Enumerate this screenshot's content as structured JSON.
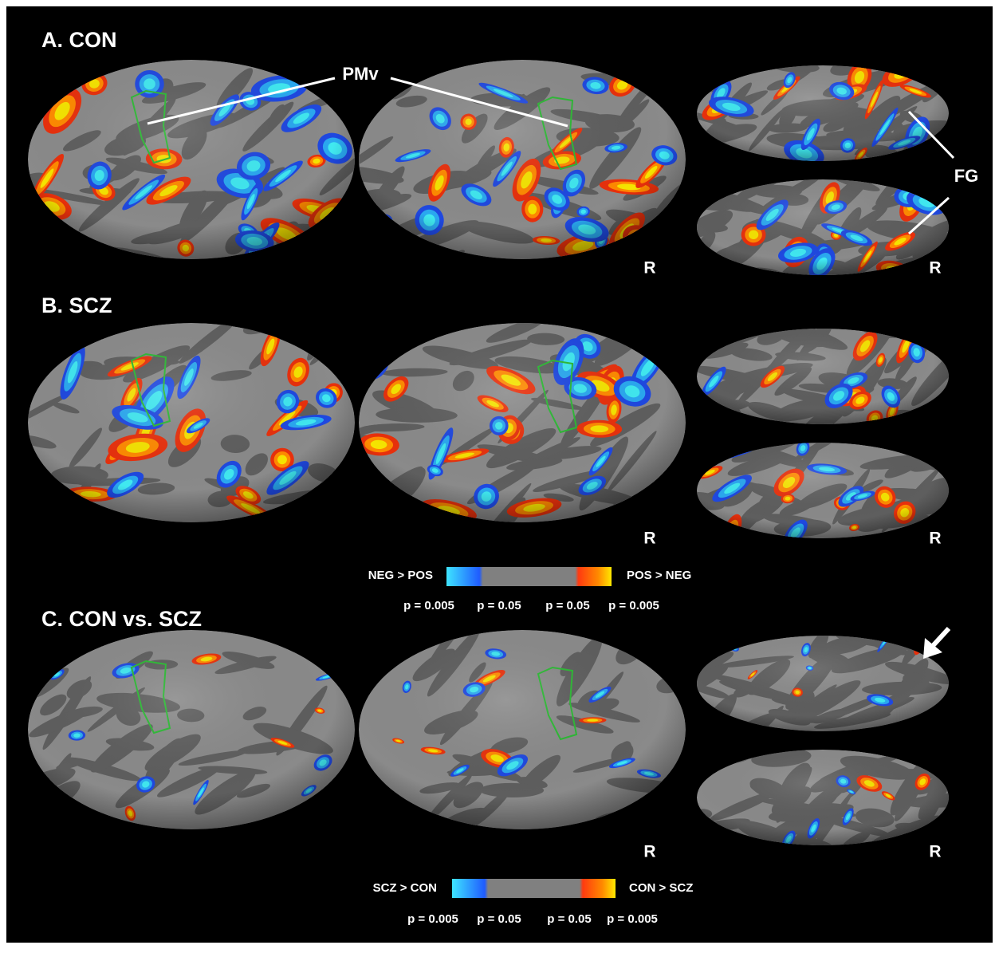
{
  "panels": [
    {
      "label": "A. CON",
      "annotations": [
        "PMv",
        "FG"
      ],
      "side_labels": [
        "R",
        "R"
      ]
    },
    {
      "label": "B. SCZ",
      "side_labels": [
        "R",
        "R"
      ]
    },
    {
      "label": "C. CON vs. SCZ",
      "side_labels": [
        "R",
        "R"
      ]
    }
  ],
  "colorbars": [
    {
      "left": "NEG > POS",
      "right": "POS > NEG",
      "p_labels": [
        "p = 0.005",
        "p = 0.05",
        "p = 0.05",
        "p = 0.005"
      ]
    },
    {
      "left": "SCZ > CON",
      "right": "CON > SCZ",
      "p_labels": [
        "p = 0.005",
        "p = 0.05",
        "p = 0.05",
        "p = 0.005"
      ]
    }
  ]
}
